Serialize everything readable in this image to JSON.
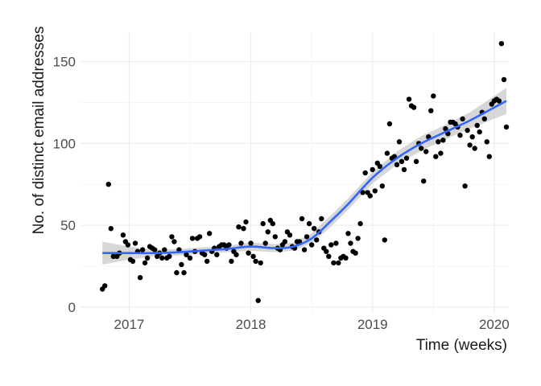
{
  "chart_data": {
    "type": "scatter",
    "title": "",
    "xlabel": "Time (weeks)",
    "ylabel": "No. of distinct email addresses",
    "xlim": [
      2016.6,
      2020.12
    ],
    "ylim": [
      -4,
      168
    ],
    "xticks": [
      2017,
      2018,
      2019,
      2020
    ],
    "xtick_labels": [
      "2017",
      "2018",
      "2019",
      "2020"
    ],
    "yticks": [
      0,
      50,
      100,
      150
    ],
    "ytick_labels": [
      "0",
      "50",
      "100",
      "150"
    ],
    "grid": true,
    "legend": "none",
    "colors": {
      "points": "#000000",
      "smooth_line": "#3366ff",
      "ribbon": "#bdbdbd",
      "grid_major": "#ebebeb",
      "grid_minor": "#f5f5f5",
      "background": "#ffffff"
    },
    "series": [
      {
        "points": [
          [
            2016.78,
            11
          ],
          [
            2016.8,
            13
          ],
          [
            2016.83,
            75
          ],
          [
            2016.85,
            48
          ],
          [
            2016.87,
            31
          ],
          [
            2016.9,
            31
          ],
          [
            2016.92,
            33
          ],
          [
            2016.95,
            44
          ],
          [
            2016.97,
            40
          ],
          [
            2016.99,
            38
          ],
          [
            2017.01,
            29
          ],
          [
            2017.03,
            28
          ],
          [
            2017.05,
            39
          ],
          [
            2017.07,
            34
          ],
          [
            2017.09,
            18
          ],
          [
            2017.11,
            35
          ],
          [
            2017.13,
            27
          ],
          [
            2017.15,
            30
          ],
          [
            2017.17,
            37
          ],
          [
            2017.19,
            36
          ],
          [
            2017.21,
            35
          ],
          [
            2017.23,
            31
          ],
          [
            2017.25,
            33
          ],
          [
            2017.27,
            30
          ],
          [
            2017.29,
            35
          ],
          [
            2017.31,
            30
          ],
          [
            2017.33,
            31
          ],
          [
            2017.35,
            43
          ],
          [
            2017.37,
            40
          ],
          [
            2017.39,
            21
          ],
          [
            2017.41,
            35
          ],
          [
            2017.43,
            26
          ],
          [
            2017.45,
            21
          ],
          [
            2017.47,
            32
          ],
          [
            2017.5,
            30
          ],
          [
            2017.52,
            42
          ],
          [
            2017.54,
            34
          ],
          [
            2017.56,
            42
          ],
          [
            2017.58,
            43
          ],
          [
            2017.6,
            33
          ],
          [
            2017.62,
            32
          ],
          [
            2017.64,
            28
          ],
          [
            2017.66,
            45
          ],
          [
            2017.68,
            34
          ],
          [
            2017.7,
            36
          ],
          [
            2017.72,
            32
          ],
          [
            2017.74,
            37
          ],
          [
            2017.76,
            38
          ],
          [
            2017.78,
            38
          ],
          [
            2017.8,
            36
          ],
          [
            2017.82,
            38
          ],
          [
            2017.84,
            28
          ],
          [
            2017.86,
            34
          ],
          [
            2017.88,
            32
          ],
          [
            2017.9,
            49
          ],
          [
            2017.92,
            39
          ],
          [
            2017.94,
            48
          ],
          [
            2017.96,
            52
          ],
          [
            2017.98,
            33
          ],
          [
            2018.0,
            39
          ],
          [
            2018.02,
            31
          ],
          [
            2018.04,
            28
          ],
          [
            2018.06,
            4
          ],
          [
            2018.08,
            27
          ],
          [
            2018.1,
            51
          ],
          [
            2018.12,
            39
          ],
          [
            2018.14,
            46
          ],
          [
            2018.16,
            53
          ],
          [
            2018.18,
            51
          ],
          [
            2018.2,
            43
          ],
          [
            2018.22,
            36
          ],
          [
            2018.24,
            35
          ],
          [
            2018.26,
            38
          ],
          [
            2018.28,
            40
          ],
          [
            2018.3,
            46
          ],
          [
            2018.32,
            44
          ],
          [
            2018.34,
            37
          ],
          [
            2018.36,
            36
          ],
          [
            2018.38,
            40
          ],
          [
            2018.4,
            40
          ],
          [
            2018.42,
            54
          ],
          [
            2018.44,
            35
          ],
          [
            2018.46,
            43
          ],
          [
            2018.48,
            51
          ],
          [
            2018.5,
            38
          ],
          [
            2018.52,
            48
          ],
          [
            2018.54,
            41
          ],
          [
            2018.56,
            46
          ],
          [
            2018.58,
            54
          ],
          [
            2018.6,
            36
          ],
          [
            2018.62,
            34
          ],
          [
            2018.64,
            31
          ],
          [
            2018.66,
            38
          ],
          [
            2018.68,
            27
          ],
          [
            2018.7,
            39
          ],
          [
            2018.72,
            27
          ],
          [
            2018.74,
            30
          ],
          [
            2018.76,
            31
          ],
          [
            2018.78,
            30
          ],
          [
            2018.8,
            45
          ],
          [
            2018.82,
            39
          ],
          [
            2018.84,
            34
          ],
          [
            2018.86,
            33
          ],
          [
            2018.88,
            42
          ],
          [
            2018.9,
            51
          ],
          [
            2018.92,
            70
          ],
          [
            2018.94,
            82
          ],
          [
            2018.96,
            70
          ],
          [
            2018.98,
            68
          ],
          [
            2019.0,
            84
          ],
          [
            2019.02,
            71
          ],
          [
            2019.04,
            88
          ],
          [
            2019.06,
            86
          ],
          [
            2019.08,
            74
          ],
          [
            2019.1,
            41
          ],
          [
            2019.12,
            94
          ],
          [
            2019.14,
            112
          ],
          [
            2019.16,
            91
          ],
          [
            2019.18,
            92
          ],
          [
            2019.2,
            87
          ],
          [
            2019.22,
            101
          ],
          [
            2019.24,
            89
          ],
          [
            2019.26,
            84
          ],
          [
            2019.28,
            91
          ],
          [
            2019.3,
            127
          ],
          [
            2019.32,
            123
          ],
          [
            2019.34,
            122
          ],
          [
            2019.36,
            89
          ],
          [
            2019.38,
            100
          ],
          [
            2019.4,
            97
          ],
          [
            2019.42,
            77
          ],
          [
            2019.44,
            95
          ],
          [
            2019.46,
            104
          ],
          [
            2019.48,
            120
          ],
          [
            2019.5,
            129
          ],
          [
            2019.52,
            92
          ],
          [
            2019.54,
            101
          ],
          [
            2019.56,
            94
          ],
          [
            2019.58,
            102
          ],
          [
            2019.6,
            109
          ],
          [
            2019.62,
            106
          ],
          [
            2019.64,
            113
          ],
          [
            2019.66,
            113
          ],
          [
            2019.68,
            112
          ],
          [
            2019.7,
            110
          ],
          [
            2019.72,
            105
          ],
          [
            2019.74,
            115
          ],
          [
            2019.76,
            74
          ],
          [
            2019.78,
            108
          ],
          [
            2019.8,
            99
          ],
          [
            2019.82,
            104
          ],
          [
            2019.84,
            97
          ],
          [
            2019.86,
            111
          ],
          [
            2019.88,
            107
          ],
          [
            2019.9,
            119
          ],
          [
            2019.92,
            115
          ],
          [
            2019.94,
            101
          ],
          [
            2019.96,
            92
          ],
          [
            2019.98,
            124
          ],
          [
            2020.0,
            126
          ],
          [
            2020.02,
            127
          ],
          [
            2020.04,
            126
          ],
          [
            2020.06,
            161
          ],
          [
            2020.08,
            139
          ],
          [
            2020.1,
            110
          ]
        ]
      }
    ],
    "smooth": {
      "x": [
        2016.78,
        2017.0,
        2017.2,
        2017.4,
        2017.6,
        2017.8,
        2018.0,
        2018.2,
        2018.35,
        2018.5,
        2018.65,
        2018.8,
        2019.0,
        2019.2,
        2019.4,
        2019.6,
        2019.8,
        2020.0,
        2020.1
      ],
      "y": [
        33,
        33,
        33,
        33.5,
        34.5,
        35.5,
        37,
        36,
        37,
        42,
        52,
        63,
        79,
        91,
        100,
        107,
        114,
        122,
        126
      ],
      "lower": [
        26,
        29,
        31,
        31.5,
        32.5,
        33.5,
        34.5,
        33.5,
        34.5,
        39,
        48.5,
        59.5,
        75.5,
        87,
        95.5,
        102.5,
        109,
        115,
        118
      ],
      "upper": [
        40,
        37,
        35,
        35.5,
        36.5,
        37.5,
        39.5,
        38.5,
        39.5,
        45,
        55.5,
        66.5,
        82.5,
        95,
        104.5,
        111.5,
        119,
        129,
        134
      ]
    }
  }
}
